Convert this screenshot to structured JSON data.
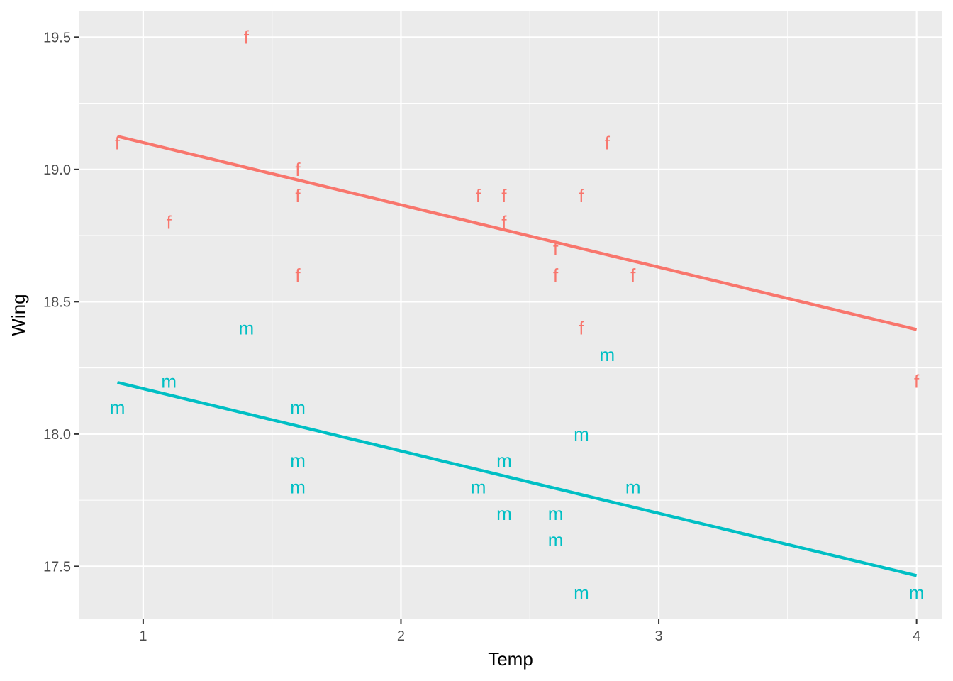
{
  "chart_data": {
    "type": "scatter",
    "title": "",
    "xlabel": "Temp",
    "ylabel": "Wing",
    "xlim": [
      0.75,
      4.1
    ],
    "ylim": [
      17.3,
      19.6
    ],
    "x_ticks": [
      1,
      2,
      3,
      4
    ],
    "x_tick_labels": [
      "1",
      "2",
      "3",
      "4"
    ],
    "y_ticks": [
      17.5,
      18.0,
      18.5,
      19.0,
      19.5
    ],
    "y_tick_labels": [
      "17.5",
      "18.0",
      "18.5",
      "19.0",
      "19.5"
    ],
    "grid": true,
    "legend": "none",
    "series": [
      {
        "label": "f",
        "color": "#f8766d",
        "points": [
          {
            "x": 0.9,
            "y": 19.1
          },
          {
            "x": 1.1,
            "y": 18.8
          },
          {
            "x": 1.4,
            "y": 19.5
          },
          {
            "x": 1.6,
            "y": 19.0
          },
          {
            "x": 1.6,
            "y": 18.9
          },
          {
            "x": 1.6,
            "y": 18.6
          },
          {
            "x": 2.3,
            "y": 18.9
          },
          {
            "x": 2.4,
            "y": 18.9
          },
          {
            "x": 2.4,
            "y": 18.8
          },
          {
            "x": 2.6,
            "y": 18.7
          },
          {
            "x": 2.6,
            "y": 18.6
          },
          {
            "x": 2.7,
            "y": 18.9
          },
          {
            "x": 2.7,
            "y": 18.4
          },
          {
            "x": 2.8,
            "y": 19.1
          },
          {
            "x": 2.9,
            "y": 18.6
          },
          {
            "x": 4.0,
            "y": 18.2
          }
        ],
        "fit_line": {
          "x": [
            0.9,
            4.0
          ],
          "y": [
            19.125,
            18.395
          ]
        }
      },
      {
        "label": "m",
        "color": "#00bfc4",
        "points": [
          {
            "x": 0.9,
            "y": 18.1
          },
          {
            "x": 1.1,
            "y": 18.2
          },
          {
            "x": 1.4,
            "y": 18.4
          },
          {
            "x": 1.6,
            "y": 18.1
          },
          {
            "x": 1.6,
            "y": 17.9
          },
          {
            "x": 1.6,
            "y": 17.8
          },
          {
            "x": 2.3,
            "y": 17.8
          },
          {
            "x": 2.4,
            "y": 17.9
          },
          {
            "x": 2.4,
            "y": 17.7
          },
          {
            "x": 2.6,
            "y": 17.7
          },
          {
            "x": 2.6,
            "y": 17.6
          },
          {
            "x": 2.7,
            "y": 18.0
          },
          {
            "x": 2.7,
            "y": 17.4
          },
          {
            "x": 2.8,
            "y": 18.3
          },
          {
            "x": 2.9,
            "y": 17.8
          },
          {
            "x": 4.0,
            "y": 17.4
          }
        ],
        "fit_line": {
          "x": [
            0.9,
            4.0
          ],
          "y": [
            18.195,
            17.465
          ]
        }
      }
    ]
  }
}
